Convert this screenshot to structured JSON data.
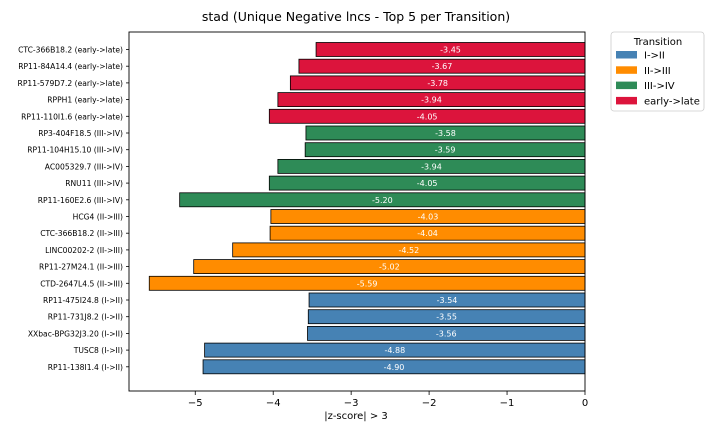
{
  "chart_data": {
    "type": "bar",
    "orientation": "horizontal",
    "title": "stad (Unique Negative lncs - Top 5 per Transition)",
    "xlabel": "|z-score| > 3",
    "ylabel": "",
    "xlim": [
      -5.85,
      0
    ],
    "x_ticks": [
      "−5",
      "−4",
      "−3",
      "−2",
      "−1",
      "0"
    ],
    "x_tick_values": [
      -5,
      -4,
      -3,
      -2,
      -1,
      0
    ],
    "legend": {
      "title": "Transition",
      "placement": "outside-top-right",
      "entries": [
        {
          "label": "I->II",
          "color": "#4682b4"
        },
        {
          "label": "II->III",
          "color": "#ff8c00"
        },
        {
          "label": "III->IV",
          "color": "#2e8b57"
        },
        {
          "label": "early->late",
          "color": "#dc143c"
        }
      ]
    },
    "bars": [
      {
        "label": "CTC-366B18.2 (early->late)",
        "value": -3.45,
        "text": "-3.45",
        "group": "early->late"
      },
      {
        "label": "RP11-84A14.4 (early->late)",
        "value": -3.67,
        "text": "-3.67",
        "group": "early->late"
      },
      {
        "label": "RP11-579D7.2 (early->late)",
        "value": -3.78,
        "text": "-3.78",
        "group": "early->late"
      },
      {
        "label": "RPPH1 (early->late)",
        "value": -3.94,
        "text": "-3.94",
        "group": "early->late"
      },
      {
        "label": "RP11-110I1.6 (early->late)",
        "value": -4.05,
        "text": "-4.05",
        "group": "early->late"
      },
      {
        "label": "RP3-404F18.5 (III->IV)",
        "value": -3.58,
        "text": "-3.58",
        "group": "III->IV"
      },
      {
        "label": "RP11-104H15.10 (III->IV)",
        "value": -3.59,
        "text": "-3.59",
        "group": "III->IV"
      },
      {
        "label": "AC005329.7 (III->IV)",
        "value": -3.94,
        "text": "-3.94",
        "group": "III->IV"
      },
      {
        "label": "RNU11 (III->IV)",
        "value": -4.05,
        "text": "-4.05",
        "group": "III->IV"
      },
      {
        "label": "RP11-160E2.6 (III->IV)",
        "value": -5.2,
        "text": "-5.20",
        "group": "III->IV"
      },
      {
        "label": "HCG4 (II->III)",
        "value": -4.03,
        "text": "-4.03",
        "group": "II->III"
      },
      {
        "label": "CTC-366B18.2 (II->III)",
        "value": -4.04,
        "text": "-4.04",
        "group": "II->III"
      },
      {
        "label": "LINC00202-2 (II->III)",
        "value": -4.52,
        "text": "-4.52",
        "group": "II->III"
      },
      {
        "label": "RP11-27M24.1 (II->III)",
        "value": -5.02,
        "text": "-5.02",
        "group": "II->III"
      },
      {
        "label": "CTD-2647L4.5 (II->III)",
        "value": -5.59,
        "text": "-5.59",
        "group": "II->III"
      },
      {
        "label": "RP11-475I24.8 (I->II)",
        "value": -3.54,
        "text": "-3.54",
        "group": "I->II"
      },
      {
        "label": "RP11-731J8.2 (I->II)",
        "value": -3.55,
        "text": "-3.55",
        "group": "I->II"
      },
      {
        "label": "XXbac-BPG32J3.20 (I->II)",
        "value": -3.56,
        "text": "-3.56",
        "group": "I->II"
      },
      {
        "label": "TUSC8 (I->II)",
        "value": -4.88,
        "text": "-4.88",
        "group": "I->II"
      },
      {
        "label": "RP11-138I1.4 (I->II)",
        "value": -4.9,
        "text": "-4.90",
        "group": "I->II"
      }
    ],
    "grid": false
  }
}
